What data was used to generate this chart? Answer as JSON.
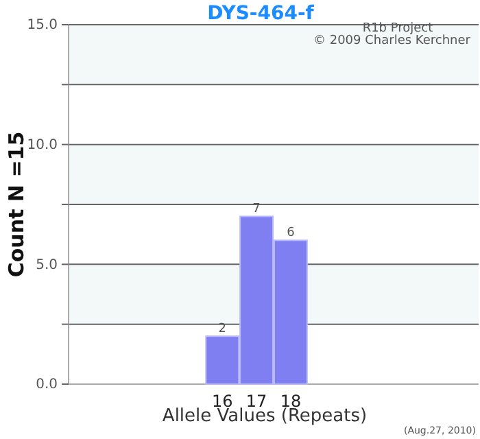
{
  "chart_data": {
    "type": "bar",
    "title": "DYS-464-f",
    "xlabel": "Allele Values (Repeats)",
    "ylabel": "Count N =15",
    "categories": [
      null,
      null,
      null,
      null,
      "16",
      "17",
      "18",
      null,
      null,
      null,
      null,
      null
    ],
    "values": [
      null,
      null,
      null,
      null,
      2,
      7,
      6,
      null,
      null,
      null,
      null,
      null
    ],
    "color": "#7f7ff2",
    "data_labels": true,
    "ylim": [
      0,
      15
    ],
    "yticks": [
      {
        "value": 0,
        "label": "0.0"
      },
      {
        "value": 2.5,
        "label": null
      },
      {
        "value": 5,
        "label": "5.0"
      },
      {
        "value": 7.5,
        "label": null
      },
      {
        "value": 10,
        "label": "10.0"
      },
      {
        "value": 12.5,
        "label": null
      },
      {
        "value": 15,
        "label": "15.0"
      }
    ],
    "grid": "y",
    "bands": [
      {
        "axis": "y",
        "from": 2.5,
        "to": 5,
        "color": "#f3f8f8"
      },
      {
        "axis": "y",
        "from": 7.5,
        "to": 10,
        "color": "#f3f8f8"
      },
      {
        "axis": "y",
        "from": 12.5,
        "to": 15,
        "color": "#f3f8f8"
      }
    ],
    "annotations": [
      "R1b Project",
      "© 2009 Charles Kerchner",
      "(Aug.27, 2010)"
    ]
  }
}
